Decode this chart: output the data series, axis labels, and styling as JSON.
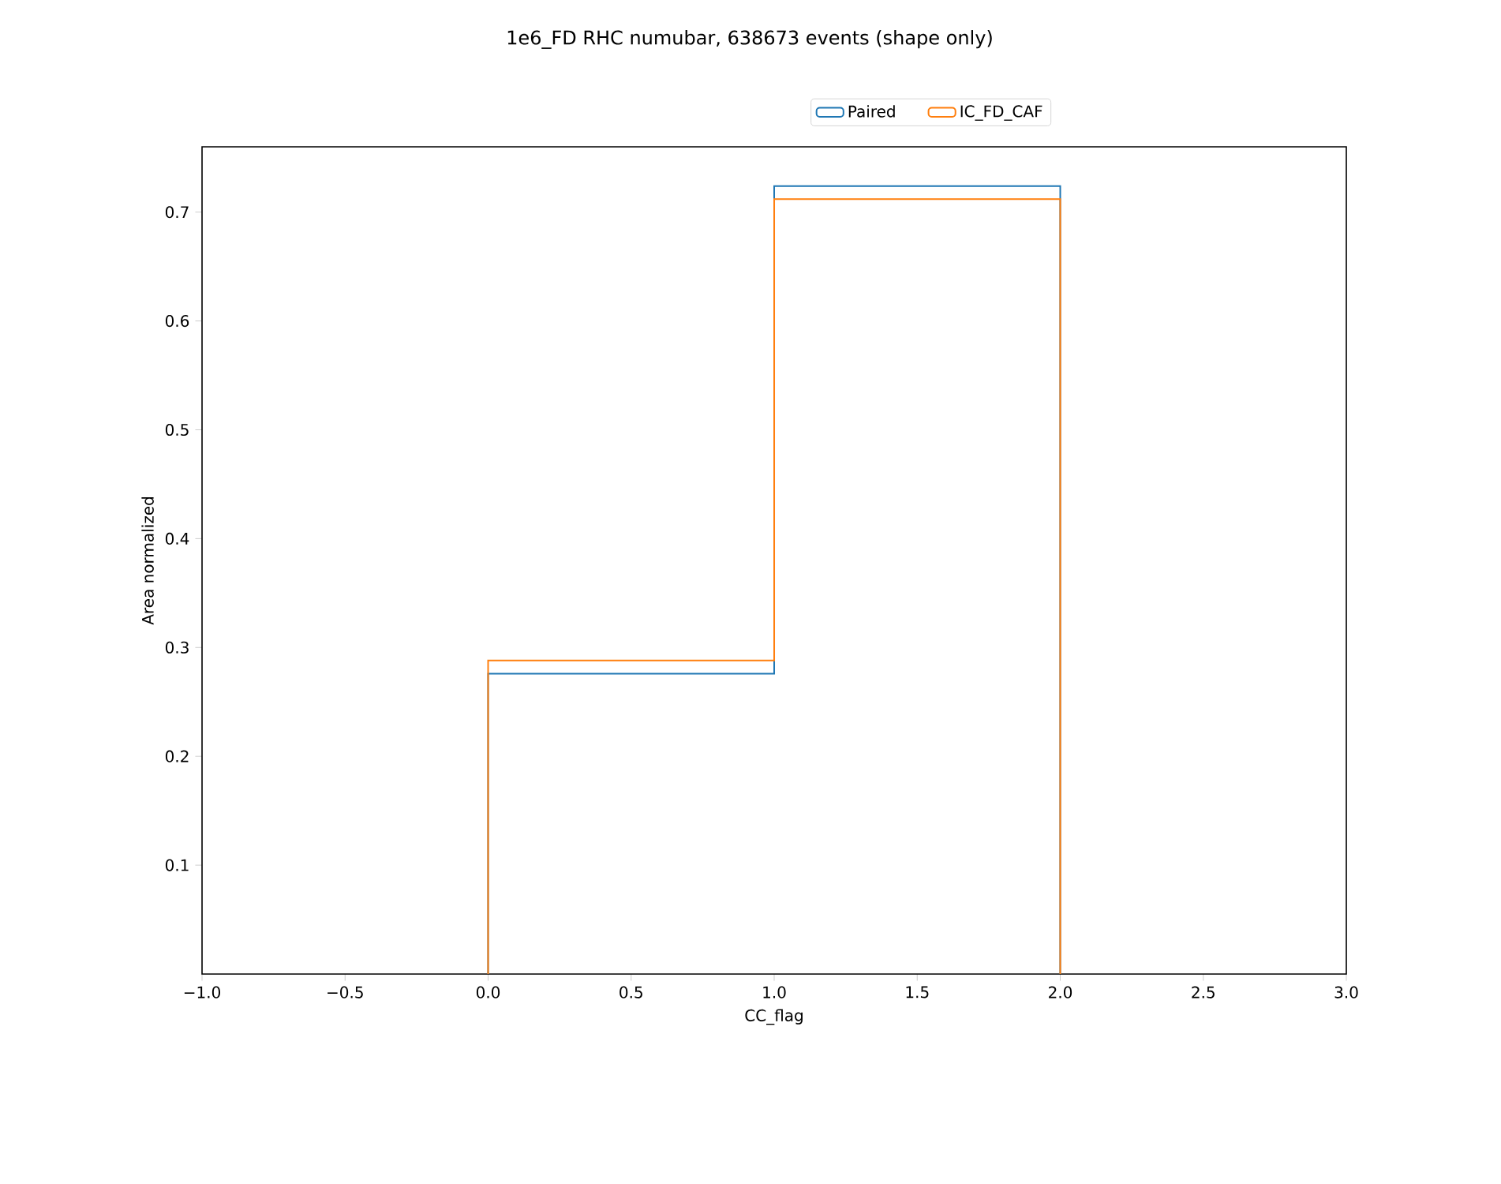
{
  "chart_data": {
    "type": "histogram",
    "title": "1e6_FD RHC numubar, 638673 events (shape only)",
    "xlabel": "CC_flag",
    "ylabel": "Area normalized",
    "bins": [
      0,
      1,
      2
    ],
    "series": [
      {
        "name": "Paired",
        "color": "#1f77b4",
        "values": [
          0.276,
          0.724
        ]
      },
      {
        "name": "IC_FD_CAF",
        "color": "#ff7f0e",
        "values": [
          0.288,
          0.712
        ]
      }
    ],
    "xlim": [
      -1,
      3
    ],
    "ylim": [
      0,
      0.76
    ],
    "xticks": [
      {
        "value": -1,
        "label": "−1.0"
      },
      {
        "value": -0.5,
        "label": "−0.5"
      },
      {
        "value": 0,
        "label": "0.0"
      },
      {
        "value": 0.5,
        "label": "0.5"
      },
      {
        "value": 1,
        "label": "1.0"
      },
      {
        "value": 1.5,
        "label": "1.5"
      },
      {
        "value": 2,
        "label": "2.0"
      },
      {
        "value": 2.5,
        "label": "2.5"
      },
      {
        "value": 3,
        "label": "3.0"
      }
    ],
    "yticks": [
      0.1,
      0.2,
      0.3,
      0.4,
      0.5,
      0.6,
      0.7
    ],
    "legend": "top"
  }
}
